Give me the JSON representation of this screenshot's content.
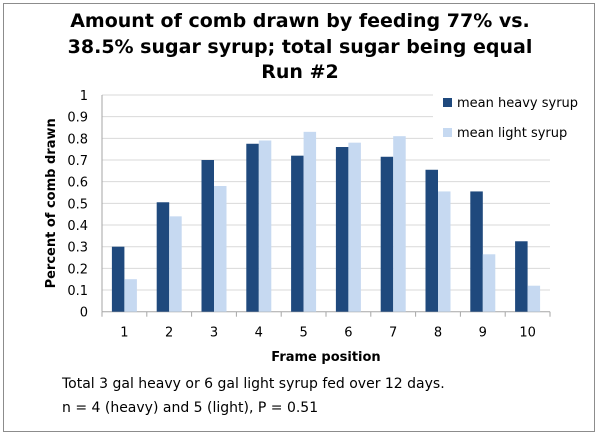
{
  "chart_data": {
    "type": "bar",
    "title": [
      "Amount of comb drawn by feeding 77% vs.",
      "38.5% sugar syrup; total sugar being equal",
      "Run #2"
    ],
    "xlabel": "Frame position",
    "ylabel": "Percent of comb drawn",
    "ylim": [
      0,
      1
    ],
    "yticks": [
      "0",
      "0.1",
      "0.2",
      "0.3",
      "0.4",
      "0.5",
      "0.6",
      "0.7",
      "0.8",
      "0.9",
      "1"
    ],
    "categories": [
      "1",
      "2",
      "3",
      "4",
      "5",
      "6",
      "7",
      "8",
      "9",
      "10"
    ],
    "grid": true,
    "legend_placement": "top-right",
    "series": [
      {
        "name": "mean heavy syrup",
        "color": "#1f497d",
        "values": [
          0.3,
          0.505,
          0.7,
          0.775,
          0.72,
          0.76,
          0.715,
          0.655,
          0.555,
          0.325
        ]
      },
      {
        "name": "mean light syrup",
        "color": "#c6d9f1",
        "values": [
          0.15,
          0.44,
          0.58,
          0.79,
          0.83,
          0.78,
          0.81,
          0.555,
          0.265,
          0.12
        ]
      }
    ]
  },
  "notes": [
    "Total 3 gal heavy or 6 gal light syrup fed over 12 days.",
    "n = 4 (heavy) and 5 (light),  P = 0.51"
  ]
}
